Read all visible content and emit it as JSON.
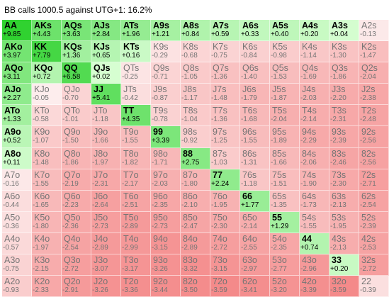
{
  "window": {
    "title": "BB calls 1000.5 against UTG+1: 16.2%"
  },
  "grid": {
    "rows": [
      [
        [
          "AA",
          "+9.85"
        ],
        [
          "AKs",
          "+4.43"
        ],
        [
          "AQs",
          "+3.63"
        ],
        [
          "AJs",
          "+2.84"
        ],
        [
          "ATs",
          "+1.96"
        ],
        [
          "A9s",
          "+1.21"
        ],
        [
          "A8s",
          "+0.84"
        ],
        [
          "A7s",
          "+0.59"
        ],
        [
          "A6s",
          "+0.33"
        ],
        [
          "A5s",
          "+0.40"
        ],
        [
          "A4s",
          "+0.20"
        ],
        [
          "A3s",
          "+0.04"
        ],
        [
          "A2s",
          "-0.13"
        ]
      ],
      [
        [
          "AKo",
          "+3.97"
        ],
        [
          "KK",
          "+7.79"
        ],
        [
          "KQs",
          "+1.36"
        ],
        [
          "KJs",
          "+0.65"
        ],
        [
          "KTs",
          "+0.16"
        ],
        [
          "K9s",
          "-0.29"
        ],
        [
          "K8s",
          "-0.68"
        ],
        [
          "K7s",
          "-0.75"
        ],
        [
          "K6s",
          "-0.84"
        ],
        [
          "K5s",
          "-0.98"
        ],
        [
          "K4s",
          "-1.14"
        ],
        [
          "K3s",
          "-1.30"
        ],
        [
          "K2s",
          "-1.47"
        ]
      ],
      [
        [
          "AQo",
          "+3.11"
        ],
        [
          "KQo",
          "+0.72"
        ],
        [
          "QQ",
          "+6.58"
        ],
        [
          "QJs",
          "+0.02"
        ],
        [
          "QTs",
          "-0.25"
        ],
        [
          "Q9s",
          "-0.71"
        ],
        [
          "Q8s",
          "-1.05"
        ],
        [
          "Q7s",
          "-1.36"
        ],
        [
          "Q6s",
          "-1.40"
        ],
        [
          "Q5s",
          "-1.53"
        ],
        [
          "Q4s",
          "-1.69"
        ],
        [
          "Q3s",
          "-1.86"
        ],
        [
          "Q2s",
          "-2.04"
        ]
      ],
      [
        [
          "AJo",
          "+2.27"
        ],
        [
          "KJo",
          "-0.05"
        ],
        [
          "QJo",
          "-0.70"
        ],
        [
          "JJ",
          "+5.41"
        ],
        [
          "JTs",
          "-0.42"
        ],
        [
          "J9s",
          "-0.87"
        ],
        [
          "J8s",
          "-1.17"
        ],
        [
          "J7s",
          "-1.48"
        ],
        [
          "J6s",
          "-1.79"
        ],
        [
          "J5s",
          "-1.87"
        ],
        [
          "J4s",
          "-2.03"
        ],
        [
          "J3s",
          "-2.20"
        ],
        [
          "J2s",
          "-2.38"
        ]
      ],
      [
        [
          "ATo",
          "+1.33"
        ],
        [
          "KTo",
          "-0.58"
        ],
        [
          "QTo",
          "-1.01"
        ],
        [
          "JTo",
          "-1.18"
        ],
        [
          "TT",
          "+4.35"
        ],
        [
          "T9s",
          "-0.78"
        ],
        [
          "T8s",
          "-1.04"
        ],
        [
          "T7s",
          "-1.36"
        ],
        [
          "T6s",
          "-1.68"
        ],
        [
          "T5s",
          "-2.04"
        ],
        [
          "T4s",
          "-2.14"
        ],
        [
          "T3s",
          "-2.31"
        ],
        [
          "T2s",
          "-2.48"
        ]
      ],
      [
        [
          "A9o",
          "+0.52"
        ],
        [
          "K9o",
          "-1.07"
        ],
        [
          "Q9o",
          "-1.50"
        ],
        [
          "J9o",
          "-1.66"
        ],
        [
          "T9o",
          "-1.55"
        ],
        [
          "99",
          "+3.39"
        ],
        [
          "98s",
          "-0.92"
        ],
        [
          "97s",
          "-1.25"
        ],
        [
          "96s",
          "-1.55"
        ],
        [
          "95s",
          "-1.89"
        ],
        [
          "94s",
          "-2.29"
        ],
        [
          "93s",
          "-2.39"
        ],
        [
          "92s",
          "-2.56"
        ]
      ],
      [
        [
          "A8o",
          "+0.11"
        ],
        [
          "K8o",
          "-1.48"
        ],
        [
          "Q8o",
          "-1.86"
        ],
        [
          "J8o",
          "-1.97"
        ],
        [
          "T8o",
          "-1.82"
        ],
        [
          "98o",
          "-1.71"
        ],
        [
          "88",
          "+2.75"
        ],
        [
          "87s",
          "-1.03"
        ],
        [
          "86s",
          "-1.31"
        ],
        [
          "85s",
          "-1.66"
        ],
        [
          "84s",
          "-2.06"
        ],
        [
          "83s",
          "-2.46"
        ],
        [
          "82s",
          "-2.56"
        ]
      ],
      [
        [
          "A7o",
          "-0.16"
        ],
        [
          "K7o",
          "-1.55"
        ],
        [
          "Q7o",
          "-2.19"
        ],
        [
          "J7o",
          "-2.31"
        ],
        [
          "T7o",
          "-2.17"
        ],
        [
          "97o",
          "-2.03"
        ],
        [
          "87o",
          "-1.80"
        ],
        [
          "77",
          "+2.24"
        ],
        [
          "76s",
          "-1.18"
        ],
        [
          "75s",
          "-1.51"
        ],
        [
          "74s",
          "-1.90"
        ],
        [
          "73s",
          "-2.30"
        ],
        [
          "72s",
          "-2.71"
        ]
      ],
      [
        [
          "A6o",
          "-0.44"
        ],
        [
          "K6o",
          "-1.65"
        ],
        [
          "Q6o",
          "-2.23"
        ],
        [
          "J6o",
          "-2.64"
        ],
        [
          "T6o",
          "-2.51"
        ],
        [
          "96o",
          "-2.35"
        ],
        [
          "86o",
          "-2.10"
        ],
        [
          "76o",
          "-1.95"
        ],
        [
          "66",
          "+1.77"
        ],
        [
          "65s",
          "-1.35"
        ],
        [
          "64s",
          "-1.73"
        ],
        [
          "63s",
          "-2.13"
        ],
        [
          "62s",
          "-2.54"
        ]
      ],
      [
        [
          "A5o",
          "-0.36"
        ],
        [
          "K5o",
          "-1.80"
        ],
        [
          "Q5o",
          "-2.36"
        ],
        [
          "J5o",
          "-2.73"
        ],
        [
          "T5o",
          "-2.89"
        ],
        [
          "95o",
          "-2.73"
        ],
        [
          "85o",
          "-2.47"
        ],
        [
          "75o",
          "-2.30"
        ],
        [
          "65o",
          "-2.14"
        ],
        [
          "55",
          "+1.29"
        ],
        [
          "54s",
          "-1.55"
        ],
        [
          "53s",
          "-1.95"
        ],
        [
          "52s",
          "-2.39"
        ]
      ],
      [
        [
          "A4o",
          "-0.57"
        ],
        [
          "K4o",
          "-1.97"
        ],
        [
          "Q4o",
          "-2.54"
        ],
        [
          "J4o",
          "-2.89"
        ],
        [
          "T4o",
          "-2.99"
        ],
        [
          "94o",
          "-3.15"
        ],
        [
          "84o",
          "-2.89"
        ],
        [
          "74o",
          "-2.72"
        ],
        [
          "64o",
          "-2.55"
        ],
        [
          "54o",
          "-2.35"
        ],
        [
          "44",
          "+0.74"
        ],
        [
          "43s",
          "-2.13"
        ],
        [
          "42s",
          "-2.53"
        ]
      ],
      [
        [
          "A3o",
          "-0.75"
        ],
        [
          "K3o",
          "-2.15"
        ],
        [
          "Q3o",
          "-2.72"
        ],
        [
          "J3o",
          "-3.07"
        ],
        [
          "T3o",
          "-3.17"
        ],
        [
          "93o",
          "-3.26"
        ],
        [
          "83o",
          "-3.32"
        ],
        [
          "73o",
          "-3.15"
        ],
        [
          "63o",
          "-2.97"
        ],
        [
          "53o",
          "-2.77"
        ],
        [
          "43o",
          "-2.96"
        ],
        [
          "33",
          "+0.20"
        ],
        [
          "32s",
          "-2.72"
        ]
      ],
      [
        [
          "A2o",
          "-0.93"
        ],
        [
          "K2o",
          "-2.33"
        ],
        [
          "Q2o",
          "-2.91"
        ],
        [
          "J2o",
          "-3.26"
        ],
        [
          "T2o",
          "-3.36"
        ],
        [
          "92o",
          "-3.44"
        ],
        [
          "82o",
          "-3.50"
        ],
        [
          "72o",
          "-3.59"
        ],
        [
          "62o",
          "-3.41"
        ],
        [
          "52o",
          "-3.20"
        ],
        [
          "42o",
          "-3.39"
        ],
        [
          "32o",
          "-3.59"
        ],
        [
          "22",
          "-0.39"
        ]
      ]
    ]
  }
}
